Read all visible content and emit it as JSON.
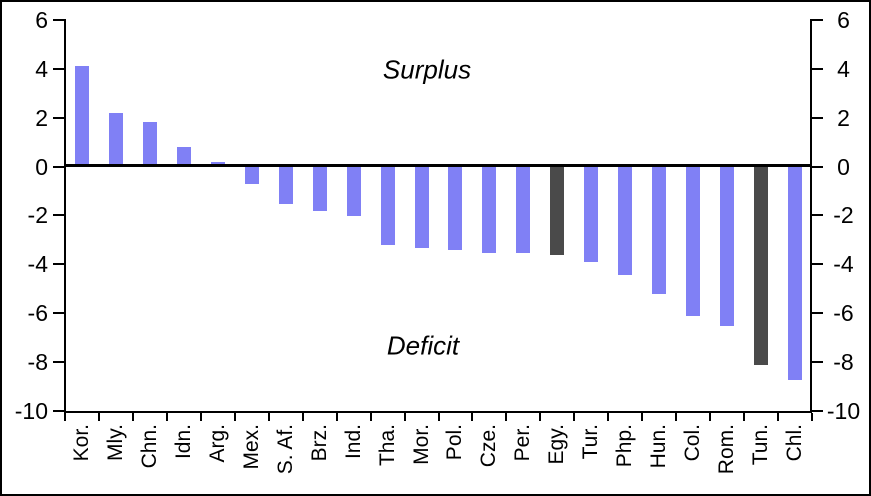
{
  "chart_data": {
    "type": "bar",
    "categories": [
      "Kor.",
      "Mly.",
      "Chn.",
      "Idn.",
      "Arg.",
      "Mex.",
      "S. Af.",
      "Brz.",
      "Ind.",
      "Tha.",
      "Mor.",
      "Pol.",
      "Cze.",
      "Per.",
      "Egy.",
      "Tur.",
      "Php.",
      "Hun.",
      "Col.",
      "Rom.",
      "Tun.",
      "Chl."
    ],
    "values": [
      4.1,
      2.2,
      1.8,
      0.8,
      0.2,
      -0.7,
      -1.5,
      -1.8,
      -2.0,
      -3.2,
      -3.3,
      -3.4,
      -3.5,
      -3.5,
      -3.6,
      -3.9,
      -4.4,
      -5.2,
      -6.1,
      -6.5,
      -8.1,
      -8.7
    ],
    "highlighted_categories": [
      "Egy.",
      "Tun."
    ],
    "bar_color": "#8080F5",
    "highlight_color": "#4A4A4A",
    "axis_color": "#000000",
    "y_axis": {
      "min": -10,
      "max": 6,
      "ticks": [
        6,
        4,
        2,
        0,
        -2,
        -4,
        -6,
        -8,
        -10
      ],
      "sides": "both"
    },
    "grid": false,
    "legend": false,
    "title": "",
    "xlabel": "",
    "ylabel": "",
    "annotations": {
      "surplus": "Surplus",
      "deficit": "Deficit"
    }
  }
}
